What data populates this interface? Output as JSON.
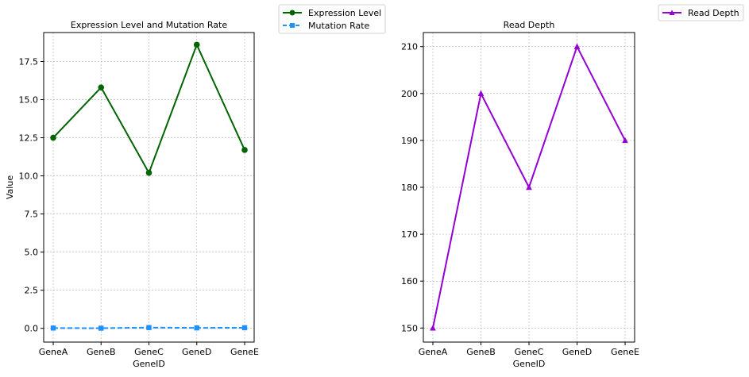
{
  "chart_data": [
    {
      "type": "line",
      "title": "Expression Level and Mutation Rate",
      "xlabel": "GeneID",
      "ylabel": "Value",
      "categories": [
        "GeneA",
        "GeneB",
        "GeneC",
        "GeneD",
        "GeneE"
      ],
      "ylim": [
        -0.9,
        19.4
      ],
      "yticks": [
        0.0,
        2.5,
        5.0,
        7.5,
        10.0,
        12.5,
        15.0,
        17.5
      ],
      "ytick_labels": [
        "0.0",
        "2.5",
        "5.0",
        "7.5",
        "10.0",
        "12.5",
        "15.0",
        "17.5"
      ],
      "grid": true,
      "legend_position": "outside-top-right",
      "series": [
        {
          "name": "Expression Level",
          "values": [
            12.5,
            15.8,
            10.2,
            18.6,
            11.7
          ],
          "color": "#006400",
          "marker": "circle",
          "linestyle": "solid"
        },
        {
          "name": "Mutation Rate",
          "values": [
            0.02,
            0.01,
            0.05,
            0.03,
            0.04
          ],
          "color": "#1E90FF",
          "marker": "square",
          "linestyle": "dashed"
        }
      ]
    },
    {
      "type": "line",
      "title": "Read Depth",
      "xlabel": "GeneID",
      "ylabel": "",
      "categories": [
        "GeneA",
        "GeneB",
        "GeneC",
        "GeneD",
        "GeneE"
      ],
      "ylim": [
        147,
        213
      ],
      "yticks": [
        150,
        160,
        170,
        180,
        190,
        200,
        210
      ],
      "ytick_labels": [
        "150",
        "160",
        "170",
        "180",
        "190",
        "200",
        "210"
      ],
      "grid": true,
      "legend_position": "outside-top-right",
      "series": [
        {
          "name": "Read Depth",
          "values": [
            150,
            200,
            180,
            210,
            190
          ],
          "color": "#9400D3",
          "marker": "triangle",
          "linestyle": "solid"
        }
      ]
    }
  ]
}
